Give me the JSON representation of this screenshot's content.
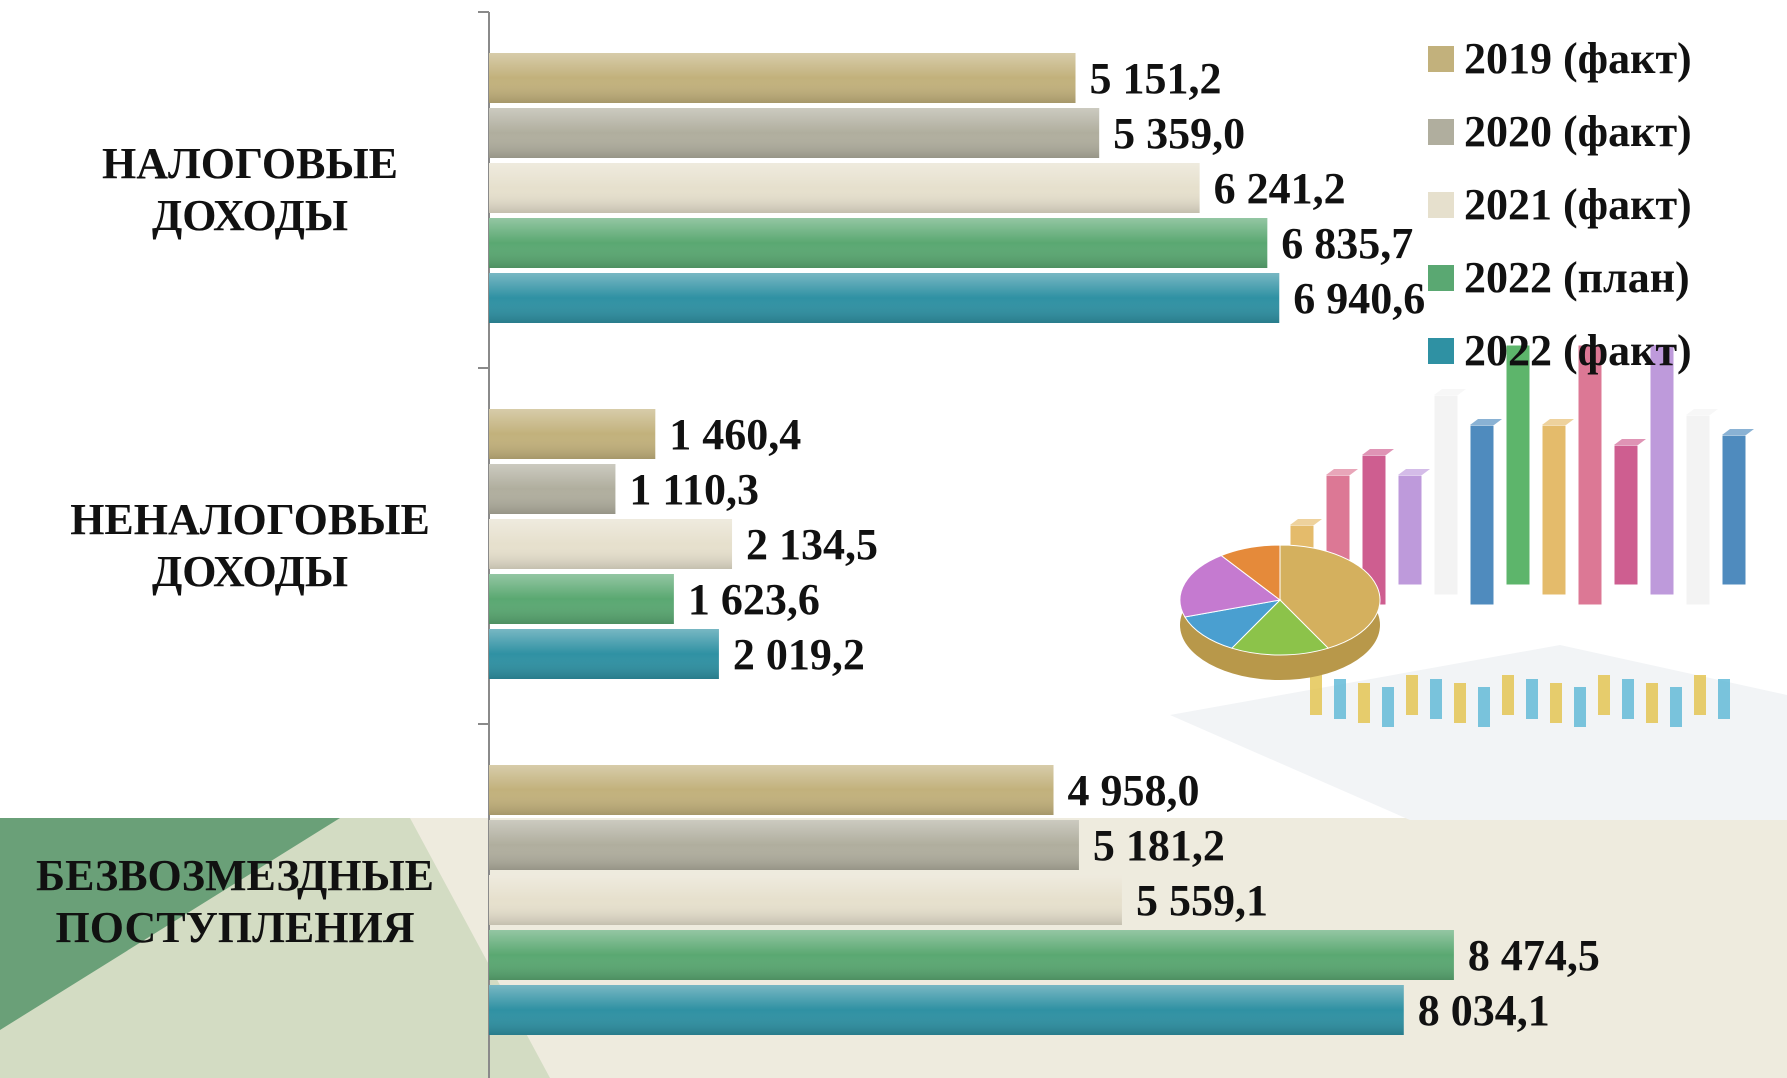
{
  "chart_data": {
    "type": "bar",
    "orientation": "horizontal",
    "categories": [
      "НАЛОГОВЫЕ\nДОХОДЫ",
      "НЕНАЛОГОВЫЕ\nДОХОДЫ",
      "БЕЗВОЗМЕЗДНЫЕ\nПОСТУПЛЕНИЯ"
    ],
    "series": [
      {
        "name": "2019 (факт)",
        "color": "#c2b17c",
        "values": [
          5151.2,
          1460.4,
          4958.0
        ],
        "labels": [
          "5 151,2",
          "1 460,4",
          "4 958,0"
        ]
      },
      {
        "name": "2020 (факт)",
        "color": "#b0ae9e",
        "values": [
          5359.0,
          1110.3,
          5181.2
        ],
        "labels": [
          "5 359,0",
          "1 110,3",
          "5 181,2"
        ]
      },
      {
        "name": "2021 (факт)",
        "color": "#e6e0cd",
        "values": [
          6241.2,
          2134.5,
          5559.1
        ],
        "labels": [
          "6 241,2",
          "2 134,5",
          "5 559,1"
        ]
      },
      {
        "name": "2022 (план)",
        "color": "#5aa872",
        "values": [
          6835.7,
          1623.6,
          8474.5
        ],
        "labels": [
          "6 835,7",
          "1 623,6",
          "8 474,5"
        ]
      },
      {
        "name": "2022 (факт)",
        "color": "#2f91a3",
        "values": [
          6940.6,
          2019.2,
          8034.1
        ],
        "labels": [
          "6 940,6",
          "2 019,2",
          "8 034,1"
        ]
      }
    ],
    "xlim": [
      0,
      11400
    ],
    "grid": false,
    "legend_position": "top-right"
  },
  "decor": {
    "illustration": "3d-bar-and-pie-charts-picture",
    "pie_colors": [
      "#d4b05e",
      "#8cc34a",
      "#4a9fd0",
      "#c57ad0",
      "#e58a3a"
    ],
    "bar_colors": [
      "#e2b45c",
      "#d96a8a",
      "#c94d84",
      "#b890d8",
      "#f2f2f2",
      "#3c7fb8",
      "#4cae5c"
    ]
  }
}
